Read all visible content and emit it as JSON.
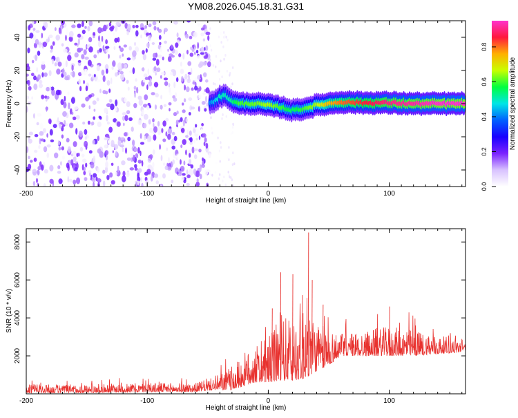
{
  "title": "YM08.2026.045.18.31.G31",
  "colors": {
    "snr_line": "#e8322f",
    "colormap": [
      "#ffffff",
      "#d8c2ff",
      "#7a22ff",
      "#1a00ff",
      "#0060ff",
      "#00e6e6",
      "#00ff40",
      "#c8ff00",
      "#ffb000",
      "#ff1a3c",
      "#ff33cc"
    ]
  },
  "chart_data": [
    {
      "type": "heatmap",
      "title": "YM08.2026.045.18.31.G31",
      "xlabel": "Height of straight line (km)",
      "ylabel": "Frequency (Hz)",
      "xlim": [
        -200,
        163
      ],
      "ylim": [
        -50,
        50
      ],
      "x_ticks": [
        -200,
        -100,
        0,
        100
      ],
      "y_ticks": [
        -40,
        -20,
        0,
        20,
        40
      ],
      "grid": false,
      "noise_region": {
        "x": [
          -200,
          -48
        ],
        "max_amplitude": 0.22
      },
      "scatter_region": {
        "x": [
          -48,
          -28
        ],
        "max_amplitude": 0.05
      },
      "ridge": {
        "x": [
          -48,
          -44,
          -40,
          -36,
          -32,
          -28,
          -24,
          -20,
          -10,
          0,
          10,
          20,
          30,
          40,
          50,
          60,
          80,
          100,
          120,
          140,
          163
        ],
        "frequency_hz": [
          0,
          2,
          4,
          5,
          3,
          1,
          0,
          0,
          0,
          -1,
          -2,
          -4,
          -3,
          -1,
          0,
          1,
          0.5,
          0.5,
          0,
          0,
          0
        ],
        "peak_amplitude": [
          0.4,
          0.45,
          0.5,
          0.5,
          0.5,
          0.55,
          0.6,
          0.6,
          0.62,
          0.65,
          0.6,
          0.55,
          0.6,
          0.65,
          0.75,
          0.8,
          0.85,
          0.9,
          0.92,
          0.95,
          0.95
        ]
      },
      "colorbar": {
        "label": "Normalized spectral amplitude",
        "range": [
          0,
          0.95
        ],
        "ticks": [
          "0.0",
          "0.2",
          "0.4",
          "0.6",
          "0.8"
        ]
      }
    },
    {
      "type": "line",
      "xlabel": "Height of straight line (km)",
      "ylabel": "SNR (10 * v/v)",
      "xlim": [
        -200,
        163
      ],
      "ylim": [
        0,
        8700
      ],
      "x_ticks": [
        -200,
        -100,
        0,
        100
      ],
      "y_ticks": [
        2000,
        4000,
        6000,
        8000
      ],
      "grid": false,
      "envelope": {
        "x": [
          -200,
          -150,
          -100,
          -60,
          -45,
          -30,
          -20,
          -10,
          0,
          10,
          20,
          30,
          40,
          50,
          60,
          80,
          100,
          120,
          140,
          163
        ],
        "min": [
          50,
          50,
          100,
          100,
          200,
          200,
          400,
          600,
          600,
          700,
          700,
          800,
          1200,
          1500,
          2000,
          2000,
          2000,
          2000,
          2100,
          2200
        ],
        "max": [
          800,
          800,
          900,
          900,
          1300,
          2300,
          3300,
          3800,
          4500,
          6400,
          6300,
          8500,
          5500,
          4700,
          4000,
          4200,
          4600,
          4300,
          3700,
          3400
        ]
      }
    }
  ]
}
